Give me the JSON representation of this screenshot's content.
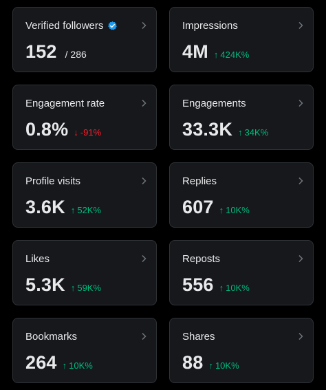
{
  "colors": {
    "background": "#000000",
    "card": "#16181c",
    "border": "#2f3336",
    "text": "#e7e9ea",
    "positive": "#00ba7c",
    "negative": "#f4212e",
    "verified": "#1d9bf0"
  },
  "cards": [
    {
      "label": "Verified followers",
      "value": "152",
      "sub": "/ 286",
      "verified_icon": "verified-badge-icon"
    },
    {
      "label": "Impressions",
      "value": "4M",
      "delta": "424K%",
      "direction": "up"
    },
    {
      "label": "Engagement rate",
      "value": "0.8%",
      "delta": "-91%",
      "direction": "down"
    },
    {
      "label": "Engagements",
      "value": "33.3K",
      "delta": "34K%",
      "direction": "up"
    },
    {
      "label": "Profile visits",
      "value": "3.6K",
      "delta": "52K%",
      "direction": "up"
    },
    {
      "label": "Replies",
      "value": "607",
      "delta": "10K%",
      "direction": "up"
    },
    {
      "label": "Likes",
      "value": "5.3K",
      "delta": "59K%",
      "direction": "up"
    },
    {
      "label": "Reposts",
      "value": "556",
      "delta": "10K%",
      "direction": "up"
    },
    {
      "label": "Bookmarks",
      "value": "264",
      "delta": "10K%",
      "direction": "up"
    },
    {
      "label": "Shares",
      "value": "88",
      "delta": "10K%",
      "direction": "up"
    }
  ],
  "icons": {
    "chevron": "chevron-right-icon",
    "up": "arrow-up-icon",
    "down": "arrow-down-icon"
  }
}
